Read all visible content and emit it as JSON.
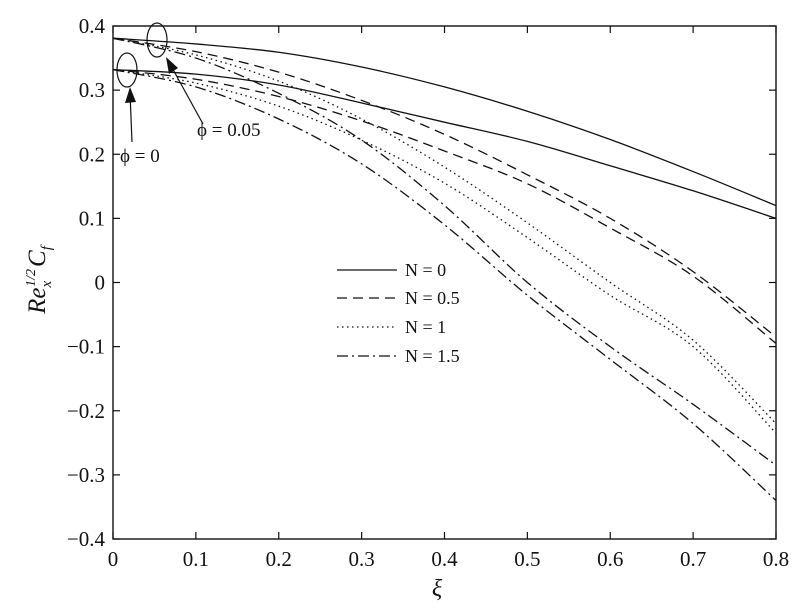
{
  "chart_data": {
    "type": "line",
    "xlabel": "ξ",
    "ylabel": {
      "base": "Re",
      "sub": "x",
      "sup": "1/2",
      "rest": "C",
      "rest_sub": "f"
    },
    "xlim": [
      0,
      0.8
    ],
    "ylim": [
      -0.4,
      0.4
    ],
    "x_ticks": [
      0,
      0.1,
      0.2,
      0.3,
      0.4,
      0.5,
      0.6,
      0.7,
      0.8
    ],
    "x_tick_labels": [
      "0",
      "0.1",
      "0.2",
      "0.3",
      "0.4",
      "0.5",
      "0.6",
      "0.7",
      "0.8"
    ],
    "y_ticks": [
      -0.4,
      -0.3,
      -0.2,
      -0.1,
      0,
      0.1,
      0.2,
      0.3,
      0.4
    ],
    "y_tick_labels": [
      "−0.4",
      "−0.3",
      "−0.2",
      "−0.1",
      "0",
      "0.1",
      "0.2",
      "0.3",
      "0.4"
    ],
    "grid": false,
    "legend_position": "center",
    "legend": [
      {
        "label": "N = 0",
        "dash": "solid"
      },
      {
        "label": "N = 0.5",
        "dash": "dashed"
      },
      {
        "label": "N = 1",
        "dash": "dotted"
      },
      {
        "label": "N = 1.5",
        "dash": "dashdot"
      }
    ],
    "x": [
      0,
      0.1,
      0.2,
      0.3,
      0.4,
      0.5,
      0.6,
      0.7,
      0.8
    ],
    "series": [
      {
        "N": "0",
        "phi": "0",
        "dash": "solid",
        "values": [
          0.332,
          0.325,
          0.308,
          0.28,
          0.25,
          0.22,
          0.182,
          0.143,
          0.1
        ]
      },
      {
        "N": "0",
        "phi": "0.05",
        "dash": "solid",
        "values": [
          0.381,
          0.372,
          0.359,
          0.336,
          0.305,
          0.267,
          0.223,
          0.173,
          0.12
        ]
      },
      {
        "N": "0.5",
        "phi": "0",
        "dash": "dashed",
        "values": [
          0.332,
          0.317,
          0.29,
          0.252,
          0.205,
          0.154,
          0.085,
          0.01,
          -0.095
        ]
      },
      {
        "N": "0.5",
        "phi": "0.05",
        "dash": "dashed",
        "values": [
          0.381,
          0.36,
          0.328,
          0.284,
          0.231,
          0.168,
          0.1,
          0.017,
          -0.085
        ]
      },
      {
        "N": "1",
        "phi": "0",
        "dash": "dotted",
        "values": [
          0.332,
          0.311,
          0.275,
          0.222,
          0.155,
          0.07,
          -0.02,
          -0.1,
          -0.235
        ]
      },
      {
        "N": "1",
        "phi": "0.05",
        "dash": "dotted",
        "values": [
          0.381,
          0.355,
          0.314,
          0.255,
          0.18,
          0.093,
          0.0,
          -0.09,
          -0.22
        ]
      },
      {
        "N": "1.5",
        "phi": "0",
        "dash": "dashdot",
        "values": [
          0.332,
          0.305,
          0.255,
          0.185,
          0.09,
          -0.02,
          -0.12,
          -0.22,
          -0.34
        ]
      },
      {
        "N": "1.5",
        "phi": "0.05",
        "dash": "dashdot",
        "values": [
          0.381,
          0.35,
          0.295,
          0.222,
          0.12,
          0.0,
          -0.1,
          -0.19,
          -0.285
        ]
      }
    ],
    "annotations": [
      {
        "text": "ϕ = 0",
        "target": [
          0.02,
          0.332
        ]
      },
      {
        "text": "ϕ = 0.05",
        "target": [
          0.055,
          0.381
        ]
      }
    ]
  }
}
